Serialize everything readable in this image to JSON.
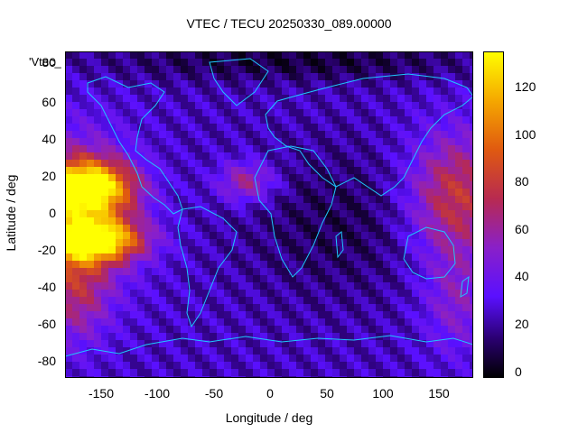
{
  "title": "VTEC / TECU 20250330_089.00000",
  "xlabel": "Longitude / deg",
  "ylabel": "Latitude / deg",
  "key_label": "'Vtec_",
  "x_ticks": [
    "-150",
    "-100",
    "-50",
    "0",
    "50",
    "100",
    "150"
  ],
  "y_ticks": [
    "80",
    "60",
    "40",
    "20",
    "0",
    "-20",
    "-40",
    "-60",
    "-80"
  ],
  "cbar_ticks": [
    "0",
    "20",
    "40",
    "60",
    "80",
    "100",
    "120"
  ],
  "chart_data": {
    "type": "heatmap",
    "xlim": [
      -180,
      180
    ],
    "ylim": [
      -90,
      90
    ],
    "cbar_range": [
      0,
      136
    ],
    "colormap": "gnuplot (black-blue-purple-red-yellow)",
    "grid": false,
    "features": [
      {
        "region": "equatorial crest north",
        "lon": -160,
        "lat": 15,
        "value": 125
      },
      {
        "region": "equatorial crest south",
        "lon": -155,
        "lat": -15,
        "value": 128
      },
      {
        "region": "west pacific band",
        "lon": 160,
        "lat": 10,
        "value": 80
      },
      {
        "region": "atlantic",
        "lon": -20,
        "lat": 20,
        "value": 72
      },
      {
        "region": "africa / indian ocean",
        "lon": 60,
        "lat": 0,
        "value": 18
      },
      {
        "region": "polar north",
        "lon": 0,
        "lat": 85,
        "value": 5
      },
      {
        "region": "southern mid-latitudes",
        "lon": 0,
        "lat": -50,
        "value": 30
      }
    ]
  }
}
